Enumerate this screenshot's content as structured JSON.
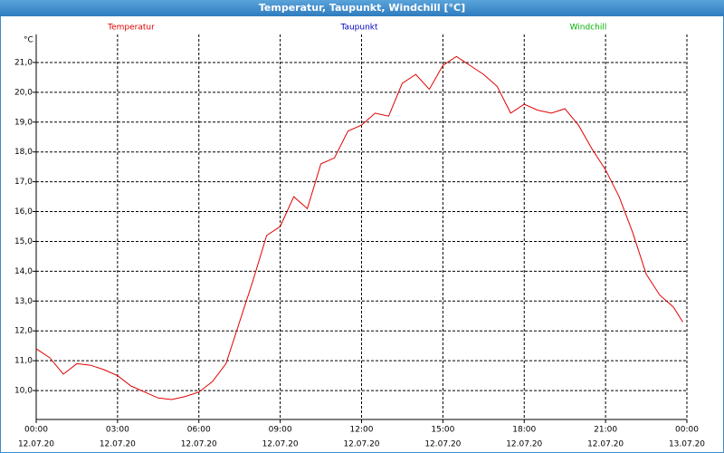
{
  "chart_data": {
    "type": "line",
    "title": "Temperatur, Taupunkt, Windchill [°C]",
    "y_unit": "°C",
    "x": [
      0,
      0.5,
      1,
      1.5,
      2,
      2.5,
      3,
      3.5,
      4,
      4.5,
      5,
      5.5,
      6,
      6.5,
      7,
      7.5,
      8,
      8.5,
      9,
      9.5,
      10,
      10.5,
      11,
      11.5,
      12,
      12.5,
      13,
      13.5,
      14,
      14.5,
      15,
      15.5,
      16,
      16.5,
      17,
      17.5,
      18,
      18.5,
      19,
      19.5,
      20,
      20.5,
      21,
      21.5,
      22,
      22.5,
      23,
      23.5,
      23.85
    ],
    "series": [
      {
        "name": "Temperatur",
        "color": "#e00000",
        "values": [
          11.4,
          11.1,
          10.55,
          10.9,
          10.85,
          10.7,
          10.5,
          10.15,
          9.95,
          9.75,
          9.7,
          9.8,
          9.95,
          10.3,
          10.9,
          12.3,
          13.7,
          15.2,
          15.5,
          16.5,
          16.1,
          17.6,
          17.8,
          18.7,
          18.9,
          19.3,
          19.2,
          20.3,
          20.6,
          20.1,
          20.9,
          21.2,
          20.9,
          20.6,
          20.2,
          19.3,
          19.6,
          19.4,
          19.3,
          19.45,
          18.9,
          18.1,
          17.4,
          16.5,
          15.3,
          13.9,
          13.2,
          12.8,
          12.3
        ]
      },
      {
        "name": "Taupunkt",
        "color": "#0000c0",
        "values": [
          null,
          null,
          null,
          null,
          null,
          null,
          null,
          null,
          null,
          null,
          null,
          null,
          null,
          null,
          null,
          null,
          null,
          null,
          null,
          null,
          null,
          null,
          null,
          null,
          null,
          null,
          null,
          null,
          null,
          null,
          null,
          null,
          null,
          null,
          null,
          null,
          null,
          null,
          null,
          null,
          null,
          null,
          null,
          null,
          null,
          null,
          null,
          null,
          null
        ]
      },
      {
        "name": "Windchill",
        "color": "#00b000",
        "values": [
          null,
          null,
          null,
          null,
          null,
          null,
          null,
          null,
          null,
          null,
          null,
          null,
          null,
          null,
          null,
          null,
          null,
          null,
          null,
          null,
          null,
          null,
          null,
          null,
          null,
          null,
          null,
          null,
          null,
          null,
          null,
          null,
          null,
          null,
          null,
          null,
          null,
          null,
          null,
          null,
          null,
          null,
          null,
          null,
          null,
          null,
          null,
          null,
          null
        ]
      }
    ],
    "xlim": [
      0,
      24
    ],
    "xticks": [
      {
        "value": 0,
        "label": "00:00",
        "date": "12.07.20"
      },
      {
        "value": 3,
        "label": "03:00",
        "date": "12.07.20"
      },
      {
        "value": 6,
        "label": "06:00",
        "date": "12.07.20"
      },
      {
        "value": 9,
        "label": "09:00",
        "date": "12.07.20"
      },
      {
        "value": 12,
        "label": "12:00",
        "date": "12.07.20"
      },
      {
        "value": 15,
        "label": "15:00",
        "date": "12.07.20"
      },
      {
        "value": 18,
        "label": "18:00",
        "date": "12.07.20"
      },
      {
        "value": 21,
        "label": "21:00",
        "date": "12.07.20"
      },
      {
        "value": 24,
        "label": "00:00",
        "date": "13.07.20"
      }
    ],
    "ylim": [
      9.03,
      21.94
    ],
    "yticks": [
      {
        "value": 10,
        "label": "10,0"
      },
      {
        "value": 11,
        "label": "11,0"
      },
      {
        "value": 12,
        "label": "12,0"
      },
      {
        "value": 13,
        "label": "13,0"
      },
      {
        "value": 14,
        "label": "14,0"
      },
      {
        "value": 15,
        "label": "15,0"
      },
      {
        "value": 16,
        "label": "16,0"
      },
      {
        "value": 17,
        "label": "17,0"
      },
      {
        "value": 18,
        "label": "18,0"
      },
      {
        "value": 19,
        "label": "19,0"
      },
      {
        "value": 20,
        "label": "20,0"
      },
      {
        "value": 21,
        "label": "21,0"
      }
    ],
    "grid": true
  }
}
